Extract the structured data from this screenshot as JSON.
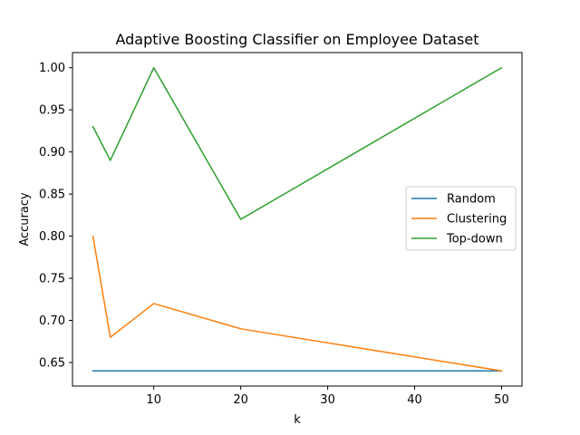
{
  "chart_data": {
    "type": "line",
    "title": "Adaptive Boosting Classifier on Employee Dataset",
    "xlabel": "k",
    "ylabel": "Accuracy",
    "x": [
      3,
      5,
      10,
      20,
      50
    ],
    "xlim": [
      0.65,
      52.35
    ],
    "ylim": [
      0.622,
      1.018
    ],
    "xticks": [
      10,
      20,
      30,
      40,
      50
    ],
    "yticks": [
      "0.65",
      "0.70",
      "0.75",
      "0.80",
      "0.85",
      "0.90",
      "0.95",
      "1.00"
    ],
    "grid": false,
    "legend_position": "center-right",
    "series": [
      {
        "name": "Random",
        "color": "#1f77b4",
        "values": [
          0.64,
          0.64,
          0.64,
          0.64,
          0.64
        ]
      },
      {
        "name": "Clustering",
        "color": "#ff7f0e",
        "values": [
          0.8,
          0.68,
          0.72,
          0.69,
          0.64
        ]
      },
      {
        "name": "Top-down",
        "color": "#2ca02c",
        "values": [
          0.93,
          0.89,
          1.0,
          0.82,
          1.0
        ]
      }
    ]
  }
}
